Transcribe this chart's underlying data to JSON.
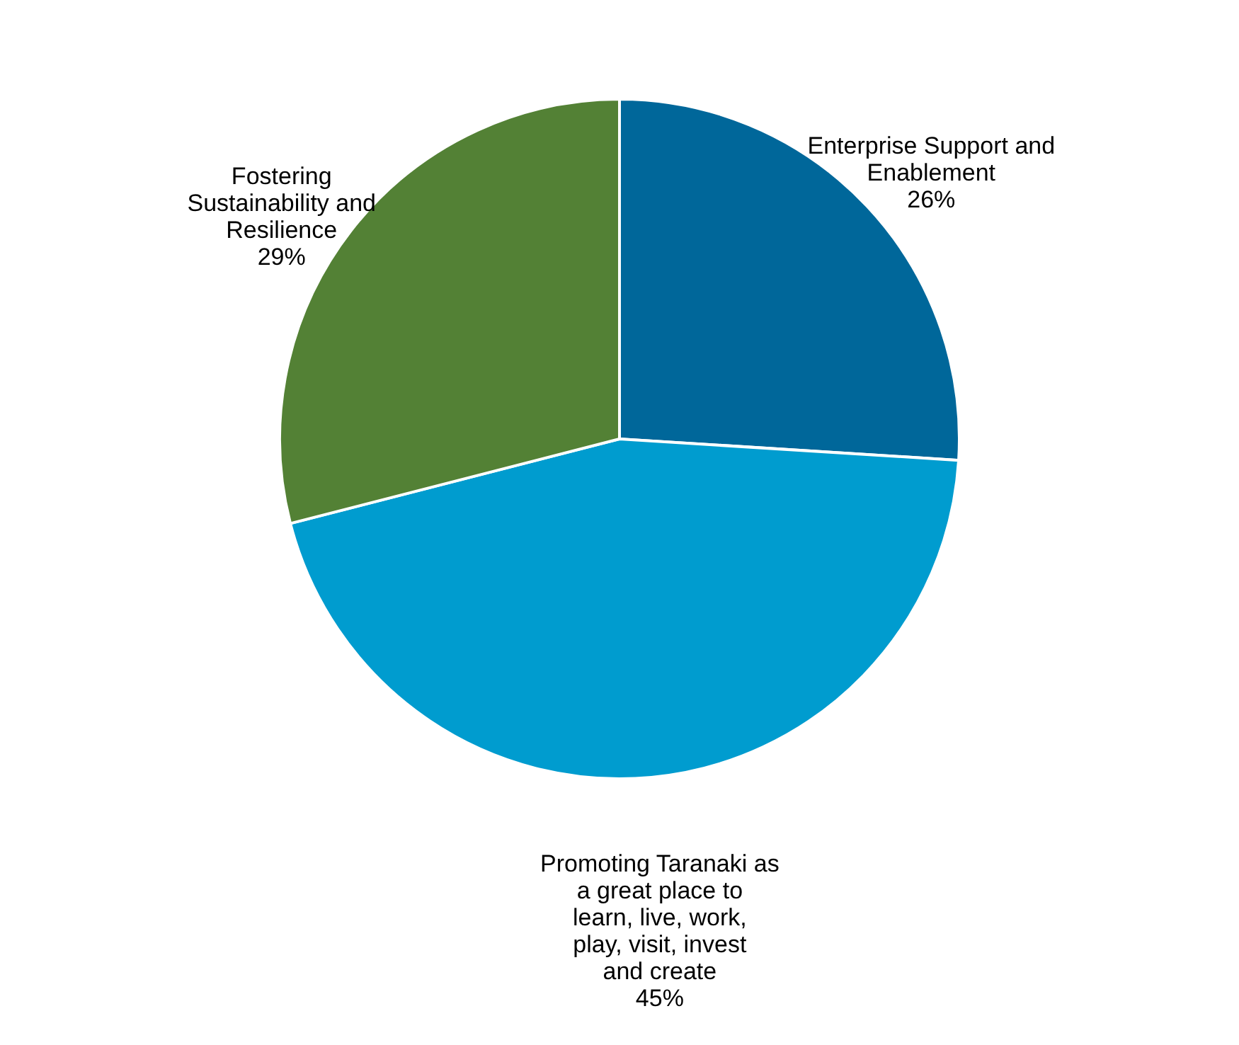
{
  "chart_data": {
    "type": "pie",
    "categories": [
      "Enterprise Support and Enablement",
      "Promoting Taranaki as a great place to learn, live, work, play, visit, invest and create",
      "Fostering Sustainability and Resilience"
    ],
    "values": [
      26,
      45,
      29
    ],
    "colors": [
      "#00679a",
      "#009ccf",
      "#538135"
    ],
    "value_labels": [
      "26%",
      "45%",
      "29%"
    ]
  }
}
